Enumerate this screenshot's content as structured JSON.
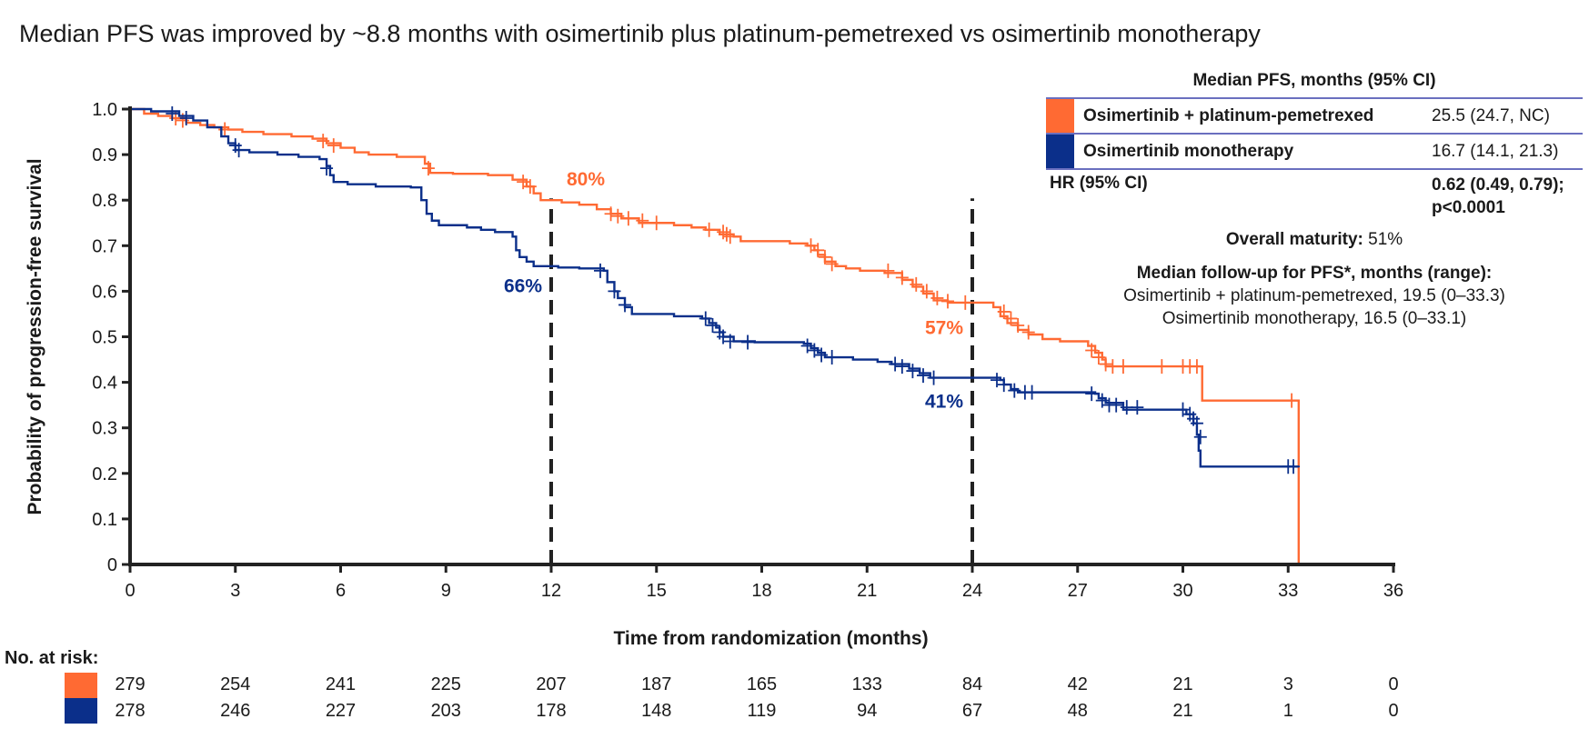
{
  "title": "Median PFS was improved by ~8.8 months with osimertinib plus platinum-pemetrexed vs osimertinib monotherapy",
  "colors": {
    "combo": "#ff6a33",
    "mono": "#0b2f8a",
    "axis": "#222222",
    "rule": "#6a6fbf"
  },
  "legend": {
    "heading": "Median PFS, months (95% CI)",
    "rows": [
      {
        "name": "Osimertinib + platinum-pemetrexed",
        "value": "25.5 (24.7, NC)"
      },
      {
        "name": "Osimertinib monotherapy",
        "value": "16.7 (14.1, 21.3)"
      }
    ],
    "hr_label": "HR (95% CI)",
    "hr_value_line1": "0.62 (0.49, 0.79);",
    "hr_value_line2": "p<0.0001",
    "maturity_label": "Overall maturity:",
    "maturity_value": "51%",
    "followup_heading": "Median follow-up for PFS*, months (range):",
    "followup_combo": "Osimertinib + platinum-pemetrexed, 19.5 (0–33.3)",
    "followup_mono": "Osimertinib monotherapy, 16.5 (0–33.1)"
  },
  "risk_table": {
    "title": "No. at risk:",
    "times": [
      0,
      3,
      6,
      9,
      12,
      15,
      18,
      21,
      24,
      27,
      30,
      33,
      36
    ],
    "combo": [
      "279",
      "254",
      "241",
      "225",
      "207",
      "187",
      "165",
      "133",
      "84",
      "42",
      "21",
      "3",
      "0"
    ],
    "mono": [
      "278",
      "246",
      "227",
      "203",
      "178",
      "148",
      "119",
      "94",
      "67",
      "48",
      "21",
      "1",
      "0"
    ]
  },
  "chart_data": {
    "type": "line",
    "subtype": "kaplan-meier step",
    "title": "Median PFS was improved by ~8.8 months with osimertinib plus platinum-pemetrexed vs osimertinib monotherapy",
    "xlabel": "Time from randomization (months)",
    "ylabel": "Probability of progression-free survival",
    "xlim": [
      0,
      36
    ],
    "ylim": [
      0,
      1
    ],
    "xticks": [
      0,
      3,
      6,
      9,
      12,
      15,
      18,
      21,
      24,
      27,
      30,
      33,
      36
    ],
    "yticks": [
      0,
      0.1,
      0.2,
      0.3,
      0.4,
      0.5,
      0.6,
      0.7,
      0.8,
      0.9,
      1.0
    ],
    "ytick_labels": [
      "0",
      "0.1",
      "0.2",
      "0.3",
      "0.4",
      "0.5",
      "0.6",
      "0.7",
      "0.8",
      "0.9",
      "1.0"
    ],
    "reference_lines": [
      12,
      24
    ],
    "series": [
      {
        "name": "Osimertinib + platinum-pemetrexed",
        "color": "#ff6a33",
        "steps": [
          [
            0,
            1.0
          ],
          [
            0.4,
            0.99
          ],
          [
            0.8,
            0.985
          ],
          [
            1.2,
            0.98
          ],
          [
            1.6,
            0.97
          ],
          [
            2.0,
            0.965
          ],
          [
            2.4,
            0.96
          ],
          [
            2.8,
            0.955
          ],
          [
            3.2,
            0.95
          ],
          [
            3.8,
            0.945
          ],
          [
            4.6,
            0.94
          ],
          [
            5.2,
            0.935
          ],
          [
            5.6,
            0.925
          ],
          [
            6.0,
            0.915
          ],
          [
            6.4,
            0.905
          ],
          [
            6.8,
            0.9
          ],
          [
            7.6,
            0.895
          ],
          [
            8.4,
            0.88
          ],
          [
            8.55,
            0.86
          ],
          [
            9.2,
            0.858
          ],
          [
            10.2,
            0.855
          ],
          [
            10.9,
            0.845
          ],
          [
            11.3,
            0.83
          ],
          [
            11.5,
            0.815
          ],
          [
            11.7,
            0.8
          ],
          [
            12.3,
            0.795
          ],
          [
            12.8,
            0.79
          ],
          [
            13.3,
            0.78
          ],
          [
            13.7,
            0.77
          ],
          [
            14.0,
            0.76
          ],
          [
            14.5,
            0.75
          ],
          [
            15.5,
            0.745
          ],
          [
            16.0,
            0.74
          ],
          [
            16.4,
            0.735
          ],
          [
            16.8,
            0.725
          ],
          [
            17.2,
            0.72
          ],
          [
            17.4,
            0.71
          ],
          [
            18.8,
            0.705
          ],
          [
            19.3,
            0.7
          ],
          [
            19.5,
            0.69
          ],
          [
            19.6,
            0.68
          ],
          [
            19.8,
            0.665
          ],
          [
            20.1,
            0.655
          ],
          [
            20.4,
            0.65
          ],
          [
            20.8,
            0.645
          ],
          [
            21.5,
            0.64
          ],
          [
            22.0,
            0.625
          ],
          [
            22.3,
            0.61
          ],
          [
            22.6,
            0.595
          ],
          [
            22.9,
            0.58
          ],
          [
            23.3,
            0.575
          ],
          [
            24.0,
            0.575
          ],
          [
            24.6,
            0.565
          ],
          [
            24.8,
            0.545
          ],
          [
            25.0,
            0.53
          ],
          [
            25.3,
            0.515
          ],
          [
            25.6,
            0.505
          ],
          [
            26.0,
            0.495
          ],
          [
            26.5,
            0.49
          ],
          [
            27.3,
            0.48
          ],
          [
            27.5,
            0.465
          ],
          [
            27.7,
            0.45
          ],
          [
            27.8,
            0.435
          ],
          [
            30.5,
            0.435
          ],
          [
            30.55,
            0.36
          ],
          [
            33.3,
            0.36
          ],
          [
            33.3,
            0.0
          ]
        ],
        "censors": [
          [
            1.3,
            0.98
          ],
          [
            1.5,
            0.975
          ],
          [
            2.7,
            0.955
          ],
          [
            5.5,
            0.93
          ],
          [
            5.8,
            0.92
          ],
          [
            8.5,
            0.87
          ],
          [
            11.2,
            0.84
          ],
          [
            11.4,
            0.83
          ],
          [
            13.7,
            0.77
          ],
          [
            13.9,
            0.765
          ],
          [
            14.2,
            0.76
          ],
          [
            14.6,
            0.755
          ],
          [
            15.0,
            0.75
          ],
          [
            16.5,
            0.735
          ],
          [
            16.9,
            0.73
          ],
          [
            17.0,
            0.725
          ],
          [
            17.1,
            0.72
          ],
          [
            19.4,
            0.7
          ],
          [
            19.6,
            0.69
          ],
          [
            19.8,
            0.675
          ],
          [
            20.0,
            0.66
          ],
          [
            21.6,
            0.645
          ],
          [
            22.0,
            0.63
          ],
          [
            22.4,
            0.615
          ],
          [
            22.7,
            0.6
          ],
          [
            23.0,
            0.585
          ],
          [
            23.3,
            0.578
          ],
          [
            23.8,
            0.575
          ],
          [
            24.9,
            0.555
          ],
          [
            25.1,
            0.54
          ],
          [
            25.3,
            0.525
          ],
          [
            25.6,
            0.51
          ],
          [
            27.4,
            0.47
          ],
          [
            27.6,
            0.455
          ],
          [
            27.8,
            0.44
          ],
          [
            28.0,
            0.435
          ],
          [
            28.3,
            0.435
          ],
          [
            29.4,
            0.435
          ],
          [
            30.0,
            0.435
          ],
          [
            30.2,
            0.435
          ],
          [
            30.4,
            0.435
          ],
          [
            33.1,
            0.36
          ]
        ]
      },
      {
        "name": "Osimertinib monotherapy",
        "color": "#0b2f8a",
        "steps": [
          [
            0,
            1.0
          ],
          [
            0.6,
            0.995
          ],
          [
            1.4,
            0.985
          ],
          [
            1.8,
            0.975
          ],
          [
            2.2,
            0.96
          ],
          [
            2.6,
            0.94
          ],
          [
            2.8,
            0.925
          ],
          [
            3.0,
            0.91
          ],
          [
            3.4,
            0.905
          ],
          [
            4.2,
            0.9
          ],
          [
            4.8,
            0.895
          ],
          [
            5.4,
            0.89
          ],
          [
            5.6,
            0.875
          ],
          [
            5.7,
            0.855
          ],
          [
            5.8,
            0.84
          ],
          [
            6.2,
            0.835
          ],
          [
            7.0,
            0.83
          ],
          [
            8.0,
            0.828
          ],
          [
            8.3,
            0.8
          ],
          [
            8.45,
            0.77
          ],
          [
            8.6,
            0.755
          ],
          [
            8.8,
            0.745
          ],
          [
            9.6,
            0.74
          ],
          [
            10.0,
            0.735
          ],
          [
            10.4,
            0.73
          ],
          [
            10.9,
            0.72
          ],
          [
            11.0,
            0.69
          ],
          [
            11.1,
            0.675
          ],
          [
            11.3,
            0.665
          ],
          [
            11.5,
            0.655
          ],
          [
            12.2,
            0.652
          ],
          [
            12.8,
            0.65
          ],
          [
            13.5,
            0.645
          ],
          [
            13.6,
            0.62
          ],
          [
            13.8,
            0.6
          ],
          [
            13.9,
            0.585
          ],
          [
            14.1,
            0.565
          ],
          [
            14.3,
            0.55
          ],
          [
            15.5,
            0.545
          ],
          [
            16.3,
            0.54
          ],
          [
            16.5,
            0.53
          ],
          [
            16.7,
            0.52
          ],
          [
            16.8,
            0.51
          ],
          [
            16.9,
            0.5
          ],
          [
            17.2,
            0.49
          ],
          [
            17.8,
            0.488
          ],
          [
            19.2,
            0.485
          ],
          [
            19.4,
            0.475
          ],
          [
            19.6,
            0.465
          ],
          [
            19.8,
            0.455
          ],
          [
            20.6,
            0.45
          ],
          [
            21.3,
            0.445
          ],
          [
            21.7,
            0.44
          ],
          [
            22.2,
            0.43
          ],
          [
            22.5,
            0.42
          ],
          [
            22.8,
            0.41
          ],
          [
            24.8,
            0.405
          ],
          [
            24.9,
            0.395
          ],
          [
            25.1,
            0.385
          ],
          [
            25.3,
            0.378
          ],
          [
            27.5,
            0.375
          ],
          [
            27.6,
            0.365
          ],
          [
            27.8,
            0.355
          ],
          [
            28.3,
            0.34
          ],
          [
            29.9,
            0.34
          ],
          [
            30.1,
            0.33
          ],
          [
            30.3,
            0.31
          ],
          [
            30.4,
            0.285
          ],
          [
            30.45,
            0.25
          ],
          [
            30.5,
            0.215
          ],
          [
            33.3,
            0.215
          ]
        ],
        "censors": [
          [
            1.2,
            0.99
          ],
          [
            1.6,
            0.98
          ],
          [
            3.0,
            0.92
          ],
          [
            3.1,
            0.91
          ],
          [
            5.6,
            0.87
          ],
          [
            13.4,
            0.645
          ],
          [
            13.8,
            0.6
          ],
          [
            14.1,
            0.57
          ],
          [
            16.4,
            0.54
          ],
          [
            16.6,
            0.525
          ],
          [
            16.8,
            0.51
          ],
          [
            16.9,
            0.5
          ],
          [
            17.1,
            0.49
          ],
          [
            17.6,
            0.488
          ],
          [
            19.3,
            0.48
          ],
          [
            19.5,
            0.47
          ],
          [
            19.7,
            0.46
          ],
          [
            20.0,
            0.455
          ],
          [
            21.8,
            0.44
          ],
          [
            22.0,
            0.435
          ],
          [
            22.3,
            0.425
          ],
          [
            22.6,
            0.415
          ],
          [
            22.9,
            0.41
          ],
          [
            24.7,
            0.405
          ],
          [
            24.9,
            0.395
          ],
          [
            25.2,
            0.382
          ],
          [
            25.5,
            0.378
          ],
          [
            25.7,
            0.378
          ],
          [
            27.4,
            0.375
          ],
          [
            27.7,
            0.36
          ],
          [
            27.9,
            0.35
          ],
          [
            28.1,
            0.35
          ],
          [
            28.4,
            0.345
          ],
          [
            28.7,
            0.345
          ],
          [
            30.0,
            0.34
          ],
          [
            30.2,
            0.33
          ],
          [
            30.3,
            0.32
          ],
          [
            30.4,
            0.31
          ],
          [
            30.5,
            0.28
          ],
          [
            33.0,
            0.215
          ],
          [
            33.15,
            0.215
          ]
        ]
      }
    ],
    "annotations": [
      {
        "text": "80%",
        "series": "Osimertinib + platinum-pemetrexed",
        "x": 12,
        "y": 0.8
      },
      {
        "text": "66%",
        "series": "Osimertinib monotherapy",
        "x": 12,
        "y": 0.66
      },
      {
        "text": "57%",
        "series": "Osimertinib + platinum-pemetrexed",
        "x": 24,
        "y": 0.57
      },
      {
        "text": "41%",
        "series": "Osimertinib monotherapy",
        "x": 24,
        "y": 0.41
      }
    ]
  }
}
